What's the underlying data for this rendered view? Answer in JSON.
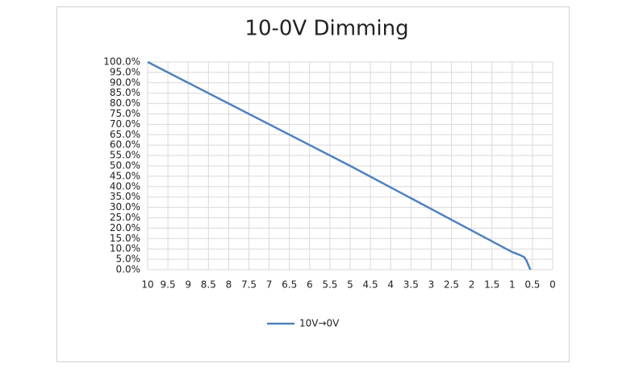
{
  "chart_data": {
    "type": "line",
    "title": "10-0V Dimming",
    "x": [
      10,
      5,
      1,
      0.8,
      0.7,
      0.65,
      0.55
    ],
    "series": [
      {
        "name": "10V→0V",
        "color": "#4f81bd",
        "values": [
          100,
          50,
          8.5,
          7,
          6,
          4.5,
          0
        ]
      }
    ],
    "xlim": [
      10,
      0
    ],
    "xticks": [
      10,
      9.5,
      9,
      8.5,
      8,
      7.5,
      7,
      6.5,
      6,
      5.5,
      5,
      4.5,
      4,
      3.5,
      3,
      2.5,
      2,
      1.5,
      1,
      0.5,
      0
    ],
    "ylim": [
      0,
      100
    ],
    "yticks": [
      {
        "value": 0,
        "label": "0.0%"
      },
      {
        "value": 5,
        "label": "5.0%"
      },
      {
        "value": 10,
        "label": "10.0%"
      },
      {
        "value": 15,
        "label": "15.0%"
      },
      {
        "value": 20,
        "label": "20.0%"
      },
      {
        "value": 25,
        "label": "25.0%"
      },
      {
        "value": 30,
        "label": "30.0%"
      },
      {
        "value": 35,
        "label": "35.0%"
      },
      {
        "value": 40,
        "label": "40.0%"
      },
      {
        "value": 45,
        "label": "45.0%"
      },
      {
        "value": 50,
        "label": "50.0%"
      },
      {
        "value": 55,
        "label": "55.0%"
      },
      {
        "value": 60,
        "label": "60.0%"
      },
      {
        "value": 65,
        "label": "65.0%"
      },
      {
        "value": 70,
        "label": "70.0%"
      },
      {
        "value": 75,
        "label": "75.0%"
      },
      {
        "value": 80,
        "label": "80.0%"
      },
      {
        "value": 85,
        "label": "85.0%"
      },
      {
        "value": 90,
        "label": "90.0%"
      },
      {
        "value": 95,
        "label": "95.0%"
      },
      {
        "value": 100,
        "label": "100.0%"
      }
    ],
    "grid": true,
    "legend": "bottom"
  }
}
